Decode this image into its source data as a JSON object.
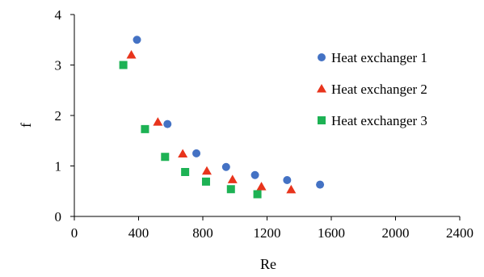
{
  "chart_data": {
    "type": "scatter",
    "xlabel": "Re",
    "ylabel": "f",
    "xlim": [
      0,
      2400
    ],
    "ylim": [
      0,
      4
    ],
    "xticks": [
      0,
      400,
      800,
      1200,
      1600,
      2000,
      2400
    ],
    "yticks": [
      0,
      1,
      2,
      3,
      4
    ],
    "grid": false,
    "legend_position": "right",
    "series": [
      {
        "name": "Heat exchanger 1",
        "marker": "circle",
        "color": "#4472C4",
        "x": [
          390,
          580,
          760,
          945,
          1125,
          1325,
          1530
        ],
        "y": [
          3.5,
          1.83,
          1.25,
          0.98,
          0.82,
          0.72,
          0.63
        ]
      },
      {
        "name": "Heat exchanger 2",
        "marker": "triangle",
        "color": "#E8341C",
        "x": [
          355,
          520,
          675,
          825,
          985,
          1165,
          1350
        ],
        "y": [
          3.2,
          1.87,
          1.24,
          0.9,
          0.73,
          0.59,
          0.53
        ]
      },
      {
        "name": "Heat exchanger 3",
        "marker": "square",
        "color": "#1DB254",
        "x": [
          305,
          440,
          565,
          690,
          820,
          975,
          1140
        ],
        "y": [
          3.0,
          1.73,
          1.18,
          0.88,
          0.69,
          0.54,
          0.44
        ]
      }
    ]
  }
}
